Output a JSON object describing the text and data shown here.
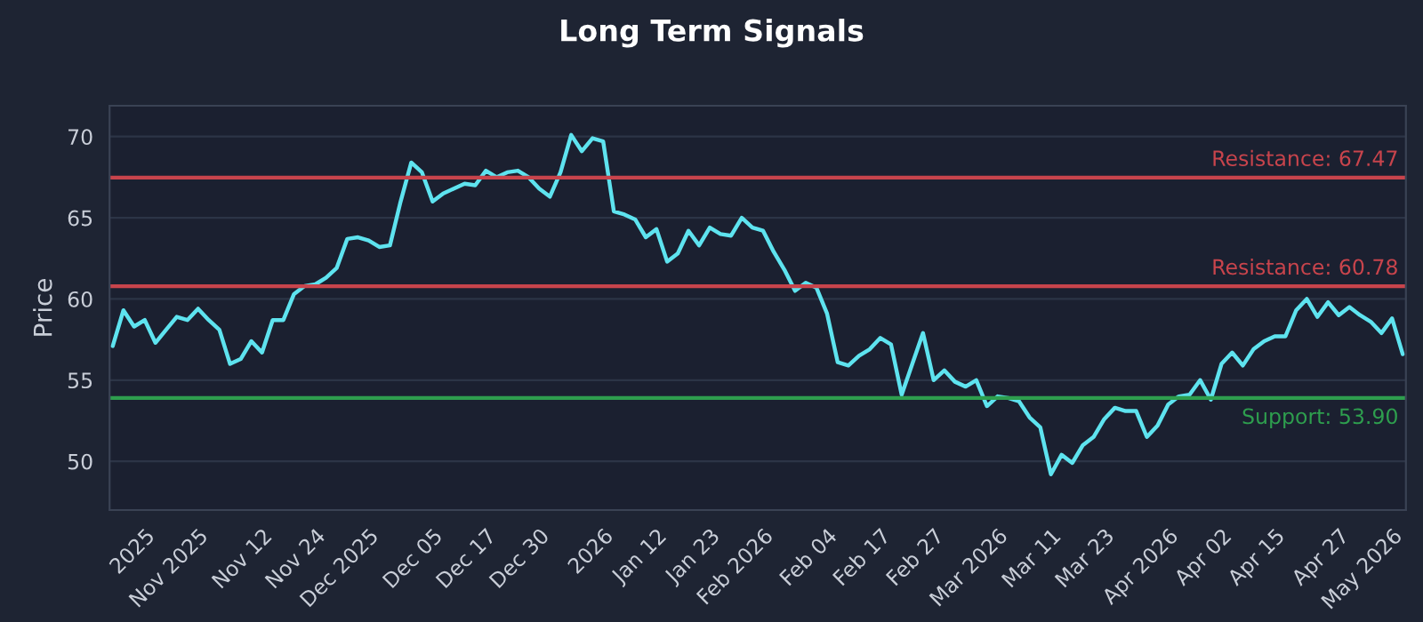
{
  "chart_data": {
    "type": "line",
    "title": "Long Term Signals",
    "ylabel": "Price",
    "categories": [
      null,
      null,
      null,
      "2025",
      null,
      null,
      null,
      null,
      "Nov 2025",
      null,
      null,
      null,
      null,
      null,
      "Nov 12",
      null,
      null,
      null,
      null,
      "Nov 24",
      null,
      null,
      null,
      null,
      "Dec 2025",
      null,
      null,
      null,
      null,
      null,
      "Dec 05",
      null,
      null,
      null,
      null,
      "Dec 17",
      null,
      null,
      null,
      null,
      "Dec 30",
      null,
      null,
      null,
      null,
      null,
      "2026",
      null,
      null,
      null,
      null,
      "Jan 12",
      null,
      null,
      null,
      null,
      "Jan 23",
      null,
      null,
      null,
      null,
      "Feb 2026",
      null,
      null,
      null,
      null,
      null,
      "Feb 04",
      null,
      null,
      null,
      null,
      "Feb 17",
      null,
      null,
      null,
      null,
      "Feb 27",
      null,
      null,
      null,
      null,
      null,
      "Mar 2026",
      null,
      null,
      null,
      null,
      "Mar 11",
      null,
      null,
      null,
      null,
      "Mar 23",
      null,
      null,
      null,
      null,
      null,
      "Apr 2026",
      null,
      null,
      null,
      null,
      "Apr 02",
      null,
      null,
      null,
      null,
      "Apr 15",
      null,
      null,
      null,
      null,
      null,
      "Apr 27",
      null,
      null,
      null,
      null,
      "May 2026",
      null
    ],
    "series": [
      {
        "color": "#5ee3ef",
        "values": [
          57.1,
          59.3,
          58.3,
          58.7,
          57.3,
          58.1,
          58.9,
          58.7,
          59.4,
          58.7,
          58.1,
          56.0,
          56.3,
          57.4,
          56.7,
          58.7,
          58.7,
          60.3,
          60.8,
          60.9,
          61.3,
          61.9,
          63.7,
          63.8,
          63.6,
          63.2,
          63.3,
          66.0,
          68.4,
          67.8,
          66.0,
          66.5,
          66.8,
          67.1,
          67.0,
          67.9,
          67.5,
          67.8,
          67.9,
          67.5,
          66.8,
          66.3,
          67.8,
          70.1,
          69.1,
          69.9,
          69.7,
          65.4,
          65.2,
          64.9,
          63.8,
          64.3,
          62.3,
          62.8,
          64.2,
          63.3,
          64.4,
          64.0,
          63.9,
          65.0,
          64.4,
          64.2,
          62.9,
          61.8,
          60.5,
          61.0,
          60.7,
          59.1,
          56.1,
          55.9,
          56.5,
          56.9,
          57.6,
          57.2,
          54.1,
          56.0,
          57.9,
          55.0,
          55.6,
          54.9,
          54.6,
          55.0,
          53.4,
          54.0,
          53.9,
          53.7,
          52.7,
          52.1,
          49.2,
          50.4,
          49.9,
          51.0,
          51.5,
          52.6,
          53.3,
          53.1,
          53.1,
          51.5,
          52.2,
          53.5,
          54.0,
          54.1,
          55.0,
          53.8,
          56.0,
          56.7,
          55.9,
          56.9,
          57.4,
          57.7,
          57.7,
          59.3,
          60.0,
          58.9,
          59.8,
          59.0,
          59.5,
          59.0,
          58.6,
          57.9,
          58.8,
          56.6
        ]
      }
    ],
    "ylim": [
      47.0,
      71.9
    ],
    "yticks": [
      50,
      55,
      60,
      65,
      70
    ],
    "grid": "y",
    "line_style": "solid",
    "ref_lines": [
      {
        "axis": "y",
        "value": 67.47,
        "label": "Resistance: 67.47",
        "color": "#c8444c"
      },
      {
        "axis": "y",
        "value": 60.78,
        "label": "Resistance: 60.78",
        "color": "#c8444c"
      },
      {
        "axis": "y",
        "value": 53.9,
        "label": "Support: 53.90",
        "color": "#2e9e4e"
      }
    ]
  }
}
